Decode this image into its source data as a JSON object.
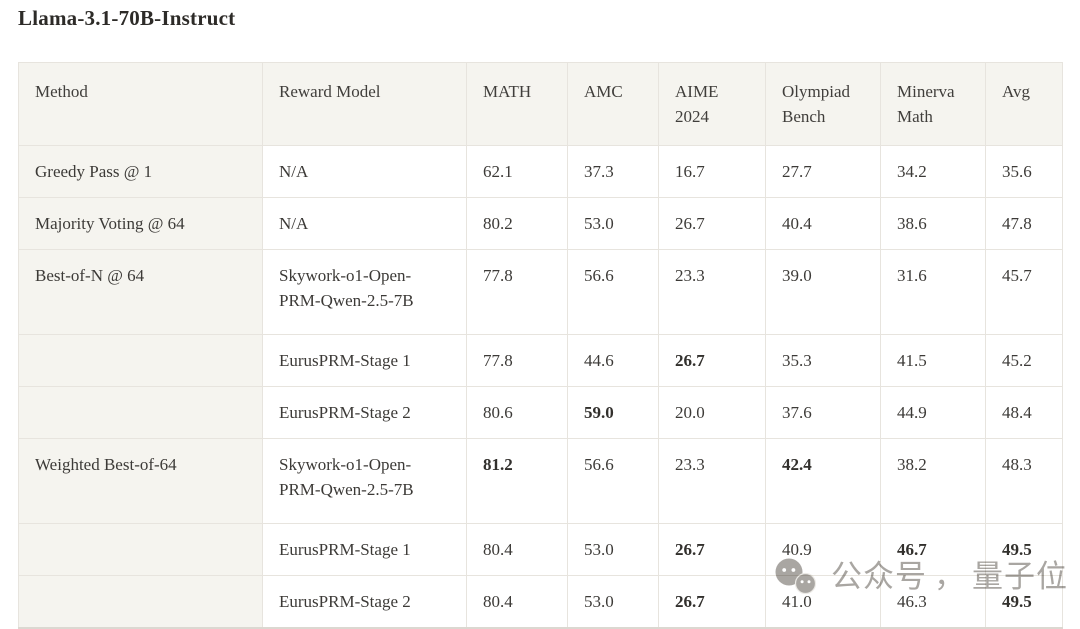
{
  "title": "Llama-3.1-70B-Instruct",
  "table": {
    "columns": [
      "Method",
      "Reward Model",
      "MATH",
      "AMC",
      "AIME 2024",
      "Olympiad Bench",
      "Minerva Math",
      "Avg"
    ],
    "rows": [
      {
        "method": "Greedy Pass @ 1",
        "reward_model": "N/A",
        "scores": [
          {
            "v": "62.1",
            "b": false
          },
          {
            "v": "37.3",
            "b": false
          },
          {
            "v": "16.7",
            "b": false
          },
          {
            "v": "27.7",
            "b": false
          },
          {
            "v": "34.2",
            "b": false
          },
          {
            "v": "35.6",
            "b": false
          }
        ]
      },
      {
        "method": "Majority Voting @ 64",
        "reward_model": "N/A",
        "scores": [
          {
            "v": "80.2",
            "b": false
          },
          {
            "v": "53.0",
            "b": false
          },
          {
            "v": "26.7",
            "b": false
          },
          {
            "v": "40.4",
            "b": false
          },
          {
            "v": "38.6",
            "b": false
          },
          {
            "v": "47.8",
            "b": false
          }
        ]
      },
      {
        "method": "Best-of-N @ 64",
        "reward_model": "Skywork-o1-Open-PRM-Qwen-2.5-7B",
        "scores": [
          {
            "v": "77.8",
            "b": false
          },
          {
            "v": "56.6",
            "b": false
          },
          {
            "v": "23.3",
            "b": false
          },
          {
            "v": "39.0",
            "b": false
          },
          {
            "v": "31.6",
            "b": false
          },
          {
            "v": "45.7",
            "b": false
          }
        ]
      },
      {
        "method": "",
        "reward_model": "EurusPRM-Stage 1",
        "scores": [
          {
            "v": "77.8",
            "b": false
          },
          {
            "v": "44.6",
            "b": false
          },
          {
            "v": "26.7",
            "b": true
          },
          {
            "v": "35.3",
            "b": false
          },
          {
            "v": "41.5",
            "b": false
          },
          {
            "v": "45.2",
            "b": false
          }
        ]
      },
      {
        "method": "",
        "reward_model": "EurusPRM-Stage 2",
        "scores": [
          {
            "v": "80.6",
            "b": false
          },
          {
            "v": "59.0",
            "b": true
          },
          {
            "v": "20.0",
            "b": false
          },
          {
            "v": "37.6",
            "b": false
          },
          {
            "v": "44.9",
            "b": false
          },
          {
            "v": "48.4",
            "b": false
          }
        ]
      },
      {
        "method": "Weighted Best-of-64",
        "reward_model": "Skywork-o1-Open-PRM-Qwen-2.5-7B",
        "scores": [
          {
            "v": "81.2",
            "b": true
          },
          {
            "v": "56.6",
            "b": false
          },
          {
            "v": "23.3",
            "b": false
          },
          {
            "v": "42.4",
            "b": true
          },
          {
            "v": "38.2",
            "b": false
          },
          {
            "v": "48.3",
            "b": false
          }
        ]
      },
      {
        "method": "",
        "reward_model": "EurusPRM-Stage 1",
        "scores": [
          {
            "v": "80.4",
            "b": false
          },
          {
            "v": "53.0",
            "b": false
          },
          {
            "v": "26.7",
            "b": true
          },
          {
            "v": "40.9",
            "b": false
          },
          {
            "v": "46.7",
            "b": true
          },
          {
            "v": "49.5",
            "b": true
          }
        ]
      },
      {
        "method": "",
        "reward_model": "EurusPRM-Stage 2",
        "scores": [
          {
            "v": "80.4",
            "b": false
          },
          {
            "v": "53.0",
            "b": false
          },
          {
            "v": "26.7",
            "b": true
          },
          {
            "v": "41.0",
            "b": false
          },
          {
            "v": "46.3",
            "b": false
          },
          {
            "v": "49.5",
            "b": true
          }
        ]
      }
    ]
  },
  "watermark": {
    "icon": "wechat-icon",
    "prefix": "公众号",
    "separator": "，",
    "name": "量子位",
    "color": "#a9a6a2"
  },
  "colors": {
    "header_bg": "#f5f4ef",
    "border": "#e7e4de",
    "text": "#3c3a37",
    "title_text": "#2d2b28",
    "watermark": "#a9a6a2"
  }
}
